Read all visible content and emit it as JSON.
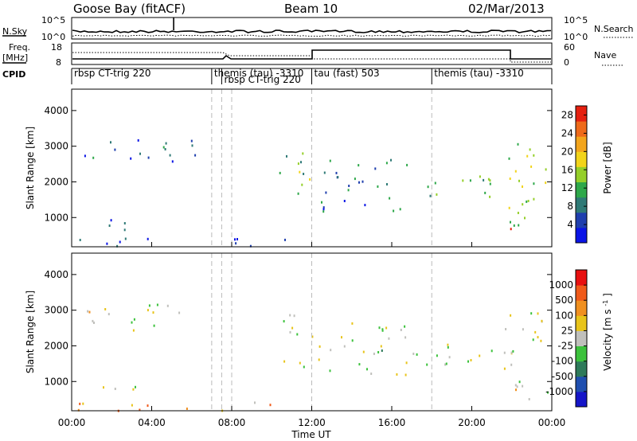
{
  "header": {
    "station": "Goose Bay (fitACF)",
    "beam": "Beam 10",
    "date": "02/Mar/2013"
  },
  "panels": {
    "nsky_label": "N.Sky",
    "nsearch_label": "N.Search",
    "freq_label": "Freq.",
    "freq_unit": "[MHz]",
    "nave_label": "Nave",
    "cpid_label": "CPID",
    "nsky_ticks": [
      "10^5",
      "10^0"
    ],
    "nsearch_ticks": [
      "10^5",
      "10^0"
    ],
    "freq_ticks": [
      "18",
      "8"
    ],
    "nave_ticks": [
      "60",
      "0"
    ]
  },
  "cpid": [
    {
      "label": "rbsp CT-trig 220",
      "start": 0.0
    },
    {
      "label": "themis (tau) -3310",
      "start": 7.0
    },
    {
      "label": "rbsp CT-trig 220",
      "start": 7.5
    },
    {
      "label": "tau (fast) 503",
      "start": 12.0
    },
    {
      "label": "themis (tau) -3310",
      "start": 18.0
    }
  ],
  "chart_data": [
    {
      "type": "heatmap",
      "name": "power",
      "ylabel": "Slant Range [km]",
      "xlabel": "Time UT",
      "xlim": [
        0,
        24
      ],
      "ylim": [
        180,
        4600
      ],
      "x_ticks": [
        "00:00",
        "04:00",
        "08:00",
        "12:00",
        "16:00",
        "20:00",
        "00:00"
      ],
      "y_ticks": [
        1000,
        2000,
        3000,
        4000
      ],
      "colorbar": {
        "label": "Power [dB]",
        "ticks": [
          4,
          8,
          12,
          16,
          20,
          24,
          28
        ],
        "range": [
          0,
          30
        ],
        "colors": [
          "#0a14e6",
          "#1f3fae",
          "#2f7a76",
          "#2ea84a",
          "#95cf2a",
          "#f2d41a",
          "#f3a51c",
          "#ee6a1a",
          "#e52010"
        ]
      },
      "cpid_change_times": [
        7.0,
        7.5,
        8.0,
        12.0,
        18.0
      ],
      "regions": [
        {
          "t0": 0.6,
          "t1": 6.2,
          "r0": 2450,
          "r1": 3200,
          "level": 0.2
        },
        {
          "t0": 0.3,
          "t1": 3.2,
          "r0": 650,
          "r1": 1000,
          "level": 0.15
        },
        {
          "t0": 0.2,
          "t1": 11.8,
          "r0": 200,
          "r1": 450,
          "level": 0.2
        },
        {
          "t0": 10.3,
          "t1": 12.0,
          "r0": 1300,
          "r1": 2900,
          "level": 0.45
        },
        {
          "t0": 12.3,
          "t1": 17.0,
          "r0": 1200,
          "r1": 2700,
          "level": 0.25
        },
        {
          "t0": 16.8,
          "t1": 21.5,
          "r0": 1500,
          "r1": 2200,
          "level": 0.4
        },
        {
          "t0": 21.6,
          "t1": 23.9,
          "r0": 500,
          "r1": 3100,
          "level": 0.5
        },
        {
          "t0": 21.8,
          "t1": 22.3,
          "r0": 550,
          "r1": 850,
          "level": 0.95
        }
      ]
    },
    {
      "type": "heatmap",
      "name": "velocity",
      "ylabel": "Slant Range [km]",
      "xlabel": "Time UT",
      "xlim": [
        0,
        24
      ],
      "ylim": [
        180,
        4600
      ],
      "x_ticks": [
        "00:00",
        "04:00",
        "08:00",
        "12:00",
        "16:00",
        "20:00",
        "00:00"
      ],
      "y_ticks": [
        1000,
        2000,
        3000,
        4000
      ],
      "colorbar": {
        "label": "Velocity",
        "unit": "[m s",
        "unit_sup": "-1",
        "unit_close": "]",
        "ticks": [
          "1000",
          "500",
          "100",
          "25",
          "-25",
          "-100",
          "-500",
          "-1000"
        ],
        "colors": [
          "#1515c8",
          "#1f4fb0",
          "#2e7a5a",
          "#3cc23c",
          "#c0c0bc",
          "#e8c41a",
          "#f09020",
          "#f05a1a",
          "#e81010"
        ]
      },
      "cpid_change_times": [
        7.0,
        7.5,
        8.0,
        12.0,
        18.0
      ],
      "regions": [
        {
          "t0": 0.6,
          "t1": 6.2,
          "r0": 2450,
          "r1": 3200,
          "level": 0.5
        },
        {
          "t0": 0.3,
          "t1": 3.2,
          "r0": 650,
          "r1": 1000,
          "level": 0.45
        },
        {
          "t0": 0.2,
          "t1": 11.8,
          "r0": 200,
          "r1": 450,
          "level": 0.7
        },
        {
          "t0": 10.3,
          "t1": 12.0,
          "r0": 1300,
          "r1": 2900,
          "level": 0.5
        },
        {
          "t0": 12.3,
          "t1": 17.0,
          "r0": 1200,
          "r1": 2700,
          "level": 0.5
        },
        {
          "t0": 16.8,
          "t1": 21.5,
          "r0": 1500,
          "r1": 2200,
          "level": 0.5
        },
        {
          "t0": 21.6,
          "t1": 23.9,
          "r0": 500,
          "r1": 3100,
          "level": 0.5
        },
        {
          "t0": 21.8,
          "t1": 22.3,
          "r0": 550,
          "r1": 850,
          "level": 0.8
        }
      ]
    }
  ]
}
